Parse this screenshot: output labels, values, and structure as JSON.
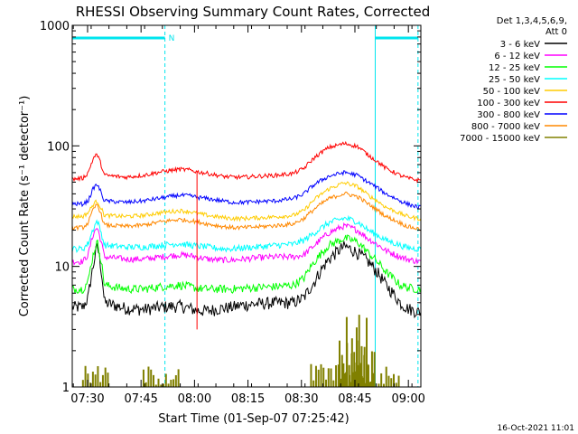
{
  "chart_data": {
    "type": "line",
    "title": "RHESSI Observing Summary Count Rates, Corrected",
    "xlabel": "Start Time (01-Sep-07 07:25:42)",
    "ylabel": "Corrected Count Rate (s⁻¹ detector⁻¹)",
    "yscale": "log",
    "ylim": [
      1,
      1000
    ],
    "xlim": [
      "07:25:42",
      "09:03:30"
    ],
    "x_ticks": [
      "07:30",
      "07:45",
      "08:00",
      "08:15",
      "08:30",
      "08:45",
      "09:00"
    ],
    "y_ticks": [
      "1",
      "10",
      "100",
      "1000"
    ],
    "legend_header": [
      "Det 1,3,4,5,6,9,",
      "Att 0"
    ],
    "timestamp": "16-Oct-2021 11:01",
    "annotations": [
      {
        "text": "N"
      }
    ],
    "x_minutes": [
      0,
      3,
      4.5,
      6,
      7,
      9,
      15,
      20,
      25,
      30,
      33,
      35,
      38,
      42,
      45,
      48,
      52,
      57,
      62,
      65,
      68,
      72,
      76,
      77,
      80,
      83,
      88,
      92,
      94,
      97
    ],
    "series": [
      {
        "name": "3 - 6 keV",
        "color": "#000000",
        "noise": 0.12,
        "values": [
          4.6,
          4.6,
          5.5,
          10.5,
          15,
          5,
          4.5,
          4.4,
          4.6,
          4.7,
          4.5,
          4.3,
          4.3,
          4.5,
          4.6,
          4.8,
          4.9,
          5.0,
          5.0,
          5.5,
          7.5,
          11.5,
          14.5,
          14.5,
          13,
          11,
          7,
          5,
          4.5,
          4.2
        ]
      },
      {
        "name": "6 - 12 keV",
        "color": "#ff00ff",
        "noise": 0.06,
        "values": [
          11,
          11,
          12.5,
          19,
          21,
          12,
          11.5,
          11.5,
          12,
          12.5,
          12.3,
          12,
          11.5,
          11.3,
          11.3,
          11.5,
          11.8,
          12,
          12,
          12.5,
          15,
          19,
          21.5,
          21.5,
          20,
          17,
          13.5,
          12,
          11.5,
          11
        ]
      },
      {
        "name": "12 - 25 keV",
        "color": "#00ff00",
        "noise": 0.08,
        "values": [
          6.5,
          6.5,
          7.5,
          13,
          16,
          7,
          6.5,
          6.5,
          6.8,
          7,
          6.8,
          6.6,
          6.5,
          6.5,
          6.5,
          6.6,
          6.7,
          6.8,
          7,
          8,
          11,
          15,
          17,
          17,
          16,
          13,
          9,
          7,
          6.7,
          6.5
        ]
      },
      {
        "name": "25 - 50 keV",
        "color": "#00ffff",
        "noise": 0.06,
        "values": [
          14,
          14,
          15.5,
          21,
          24,
          15,
          14.5,
          14.5,
          15,
          15.5,
          15,
          14.8,
          14.5,
          14,
          14,
          14.3,
          14.5,
          15,
          15.3,
          16.5,
          19,
          23,
          25,
          25,
          23.5,
          20,
          16.5,
          15,
          14.3,
          14
        ]
      },
      {
        "name": "50 - 100 keV",
        "color": "#ffcc00",
        "noise": 0.04,
        "values": [
          26,
          26,
          28,
          33,
          35,
          26.5,
          26,
          26.5,
          28,
          29,
          28.5,
          27.5,
          26.5,
          25.5,
          25,
          25,
          25.3,
          25.8,
          26.5,
          29,
          36,
          44,
          49,
          49,
          46,
          39,
          31,
          27.5,
          26,
          25
        ]
      },
      {
        "name": "100 - 300 keV",
        "color": "#ff0000",
        "noise": 0.04,
        "values": [
          53,
          54,
          60,
          80,
          85,
          57,
          55,
          57,
          61,
          64,
          63,
          61,
          59,
          56,
          55,
          55,
          56,
          57,
          59,
          65,
          80,
          97,
          104,
          104,
          99,
          84,
          65,
          57,
          54,
          52
        ]
      },
      {
        "name": "300 - 800 keV",
        "color": "#0000ff",
        "noise": 0.04,
        "values": [
          33,
          33,
          35,
          45,
          48,
          35,
          34,
          35,
          37,
          39,
          38.5,
          37.5,
          36.5,
          35,
          34,
          34,
          34.5,
          35,
          36.5,
          40,
          48,
          56,
          60,
          60,
          57,
          50,
          40,
          35,
          33,
          31
        ]
      },
      {
        "name": "800 - 7000 keV",
        "color": "#ff8800",
        "noise": 0.04,
        "values": [
          21,
          21,
          23,
          30,
          33,
          22,
          21.5,
          22,
          23.5,
          24.5,
          24,
          23.5,
          22.5,
          21.5,
          21,
          21,
          21.3,
          21.8,
          22.5,
          25,
          30,
          36.5,
          40,
          40,
          38,
          33,
          26,
          23,
          21.5,
          20.5
        ]
      },
      {
        "name": "7000 - 15000 keV",
        "color": "#808000",
        "noise": 0,
        "values": []
      }
    ],
    "vertical_markers_minutes": [
      0,
      26,
      85,
      97
    ],
    "top_bars_minutes": [
      [
        0,
        26
      ],
      [
        85,
        97
      ]
    ],
    "marker_color": "#00e5ee"
  }
}
